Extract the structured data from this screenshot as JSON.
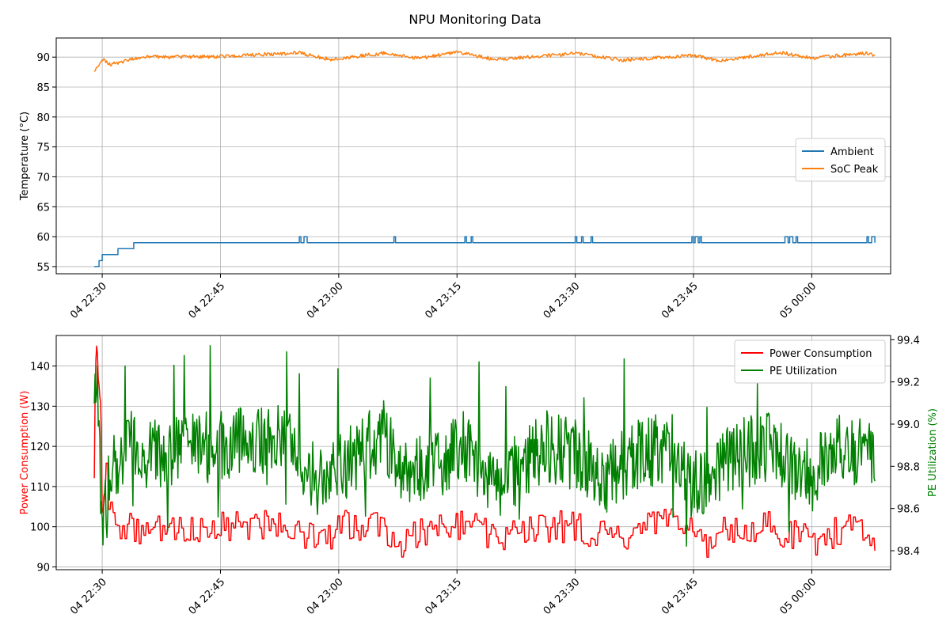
{
  "title": "NPU Monitoring Data",
  "chart_data": [
    {
      "type": "line",
      "ylabel": "Temperature (°C)",
      "ylim": [
        53.8,
        93.2
      ],
      "yticks": [
        55,
        60,
        65,
        70,
        75,
        80,
        85,
        90
      ],
      "xlim": [
        "2024-01-04 22:24:10",
        "2024-01-05 00:10:00"
      ],
      "xticks": [
        "04 22:30",
        "04 22:45",
        "04 23:00",
        "04 23:15",
        "04 23:30",
        "04 23:45",
        "05 00:00"
      ],
      "grid": true,
      "legend_position": "center-right",
      "series": [
        {
          "name": "Ambient",
          "color": "#1f77b4",
          "x": [
            "22:29:00",
            "22:29:30",
            "22:30:00",
            "22:31:00",
            "22:32:00",
            "22:33:00",
            "22:34:00",
            "22:40:00",
            "22:50:00",
            "23:00:00",
            "23:10:00",
            "23:20:00",
            "23:30:00",
            "23:40:00",
            "23:50:00",
            "00:00:00",
            "00:08:00"
          ],
          "values": [
            55,
            56,
            57,
            57,
            58,
            58,
            59,
            59,
            59,
            59,
            59,
            59,
            59,
            59,
            59,
            59,
            59
          ],
          "spikes": [
            "22:55:00",
            "22:55:40",
            "23:07:00",
            "23:16:00",
            "23:16:50",
            "23:30:00",
            "23:30:50",
            "23:32:00",
            "23:44:50",
            "23:45:20",
            "23:45:50",
            "23:56:40",
            "23:57:20",
            "23:58:00",
            "00:07:00",
            "00:07:40"
          ],
          "spike_value": 60
        },
        {
          "name": "SoC Peak",
          "color": "#ff7f0e",
          "x": [
            "22:29:00",
            "22:30:00",
            "22:31:00",
            "22:35:00",
            "22:45:00",
            "22:55:00",
            "22:59:00",
            "23:06:00",
            "23:10:00",
            "23:15:00",
            "23:20:00",
            "23:30:00",
            "23:36:00",
            "23:45:00",
            "23:48:00",
            "23:56:00",
            "00:00:00",
            "00:07:00",
            "00:08:00"
          ],
          "values": [
            87.5,
            89.8,
            88.8,
            90.0,
            90.1,
            90.7,
            89.6,
            90.7,
            89.8,
            90.8,
            89.6,
            90.6,
            89.5,
            90.3,
            89.4,
            90.8,
            89.8,
            90.7,
            90.2
          ]
        }
      ]
    },
    {
      "type": "line",
      "ylabel": "Power Consumption (W)",
      "ylabel_color": "#ff0000",
      "ylim": [
        89.3,
        147.6
      ],
      "yticks": [
        90,
        100,
        110,
        120,
        130,
        140
      ],
      "y2label": "PE Utilization (%)",
      "y2label_color": "#008000",
      "y2lim": [
        98.31,
        99.42
      ],
      "y2ticks": [
        98.4,
        98.6,
        98.8,
        99.0,
        99.2,
        99.4
      ],
      "xlim": [
        "2024-01-04 22:24:10",
        "2024-01-05 00:10:00"
      ],
      "xticks": [
        "04 22:30",
        "04 22:45",
        "04 23:00",
        "04 23:15",
        "04 23:30",
        "04 23:45",
        "05 00:00"
      ],
      "grid": true,
      "legend_position": "top-right",
      "series": [
        {
          "name": "Power Consumption",
          "color": "#ff0000",
          "axis": "left",
          "x": [
            "22:29:00",
            "22:29:10",
            "22:29:30",
            "22:29:50",
            "22:30:00",
            "22:30:30",
            "22:31:00",
            "22:32:00",
            "22:35:00",
            "22:45:00",
            "22:53:00",
            "22:58:00",
            "23:00:00",
            "23:05:00",
            "23:08:00",
            "23:12:00",
            "23:16:00",
            "23:20:00",
            "23:26:00",
            "23:30:00",
            "23:36:00",
            "23:40:00",
            "23:44:00",
            "23:47:00",
            "23:50:00",
            "23:55:00",
            "00:00:00",
            "00:05:00",
            "00:08:00"
          ],
          "values": [
            115,
            145,
            138,
            130,
            104,
            113,
            104,
            100,
            99,
            100,
            101,
            96,
            100,
            101,
            96,
            100,
            101,
            97,
            100,
            100,
            96,
            101,
            100,
            96,
            100,
            100,
            96,
            100,
            98
          ]
        },
        {
          "name": "PE Utilization",
          "color": "#008000",
          "axis": "right",
          "x": [
            "22:29:00",
            "22:29:30",
            "22:30:00",
            "22:30:30",
            "22:31:00",
            "22:33:00",
            "22:37:00",
            "22:45:00",
            "22:53:00",
            "22:58:00",
            "23:02:00",
            "23:06:00",
            "23:08:00",
            "23:12:00",
            "23:16:00",
            "23:20:00",
            "23:26:00",
            "23:30:00",
            "23:34:00",
            "23:38:00",
            "23:42:00",
            "23:45:00",
            "23:50:00",
            "23:55:00",
            "00:00:00",
            "00:04:00",
            "00:08:00"
          ],
          "values": [
            99.25,
            99.1,
            98.5,
            98.6,
            98.75,
            98.9,
            98.85,
            98.9,
            98.95,
            98.7,
            98.85,
            98.95,
            98.75,
            98.8,
            98.9,
            98.7,
            98.9,
            98.85,
            98.75,
            98.85,
            98.9,
            98.7,
            98.85,
            98.9,
            98.75,
            98.9,
            98.85
          ]
        }
      ]
    }
  ]
}
